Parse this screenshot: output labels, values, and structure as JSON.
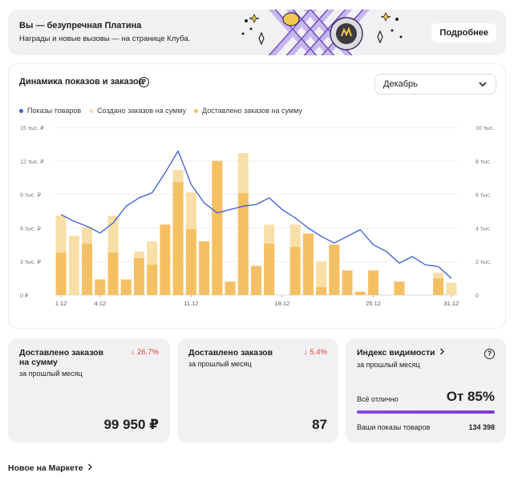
{
  "banner": {
    "title": "Вы — безупречная Платина",
    "subtitle": "Награды и новые вызовы — на странице Клуба.",
    "button": "Подробнее",
    "colors": {
      "lavender": "#c8b8ee",
      "purple": "#6f4fbf",
      "gold": "#f2c94c"
    }
  },
  "chart_card": {
    "title": "Динамика показов и заказов",
    "month": "Декабрь",
    "help_glyph": "?"
  },
  "chart_data": {
    "type": "bar",
    "colors": {
      "shows": "#3b5bd6",
      "created": "#f8dfa7",
      "delivered": "#f5c063"
    },
    "legend": [
      "Показы товаров",
      "Создано заказов на сумму",
      "Доставлено заказов на сумму"
    ],
    "x": [
      1,
      2,
      3,
      4,
      5,
      6,
      7,
      8,
      9,
      10,
      11,
      12,
      13,
      14,
      15,
      16,
      17,
      18,
      19,
      20,
      21,
      22,
      23,
      24,
      25,
      26,
      27,
      28,
      29,
      30,
      31
    ],
    "x_tick_labels": [
      "1.12",
      "4.12",
      "11.12",
      "18.12",
      "25.12",
      "31.12"
    ],
    "x_tick_positions": [
      1,
      4,
      11,
      18,
      25,
      31
    ],
    "y_left": {
      "ticks": [
        "0 ₽",
        "3 тыс. ₽",
        "6 тыс. ₽",
        "9 тыс. ₽",
        "12 тыс. ₽",
        "15 тыс. ₽"
      ],
      "range": [
        0,
        15000
      ]
    },
    "y_right": {
      "ticks": [
        "0",
        "2 тыс.",
        "4 тыс.",
        "6 тыс.",
        "8 тыс.",
        "10 тыс."
      ],
      "range": [
        0,
        10000
      ]
    },
    "series": [
      {
        "name": "Создано заказов на сумму",
        "values": [
          7100,
          5300,
          6100,
          1400,
          7100,
          1400,
          3900,
          4800,
          6300,
          11200,
          9200,
          4800,
          12000,
          1200,
          12700,
          2600,
          6300,
          0,
          6300,
          5500,
          3000,
          4500,
          2200,
          300,
          2200,
          0,
          1200,
          0,
          0,
          2000,
          1100
        ]
      },
      {
        "name": "Доставлено заказов на сумму",
        "values": [
          3800,
          0,
          4600,
          1400,
          3800,
          1400,
          3300,
          2700,
          6300,
          10100,
          5900,
          4800,
          12000,
          1200,
          9100,
          2600,
          4600,
          0,
          4300,
          5500,
          700,
          4500,
          2200,
          300,
          2200,
          0,
          1200,
          0,
          0,
          1500,
          0
        ]
      },
      {
        "name": "Показы товаров",
        "values": [
          4800,
          4400,
          4100,
          3700,
          4300,
          5300,
          5800,
          6100,
          7300,
          8600,
          6600,
          5500,
          4900,
          5100,
          5300,
          5400,
          5800,
          5100,
          4600,
          4000,
          3500,
          3100,
          3500,
          3900,
          3000,
          2600,
          1900,
          2300,
          1800,
          1700,
          1000
        ]
      }
    ]
  },
  "metrics": {
    "delivered_sum": {
      "title": "Доставлено заказов на сумму",
      "subtitle": "за прошлый месяц",
      "delta": "↓ 26.7%",
      "value": "99 950 ₽"
    },
    "delivered_count": {
      "title": "Доставлено заказов",
      "subtitle": "за прошлый месяц",
      "delta": "↓ 5.4%",
      "value": "87"
    },
    "visibility": {
      "title": "Индекс видимости",
      "subtitle": "за прошлый месяц",
      "status": "Всё отлично",
      "value": "От 85%",
      "shows_label": "Ваши показы товаров",
      "shows_value": "134 398",
      "accent": "#7b3fd6"
    }
  },
  "news": {
    "label": "Новое на Маркете"
  }
}
